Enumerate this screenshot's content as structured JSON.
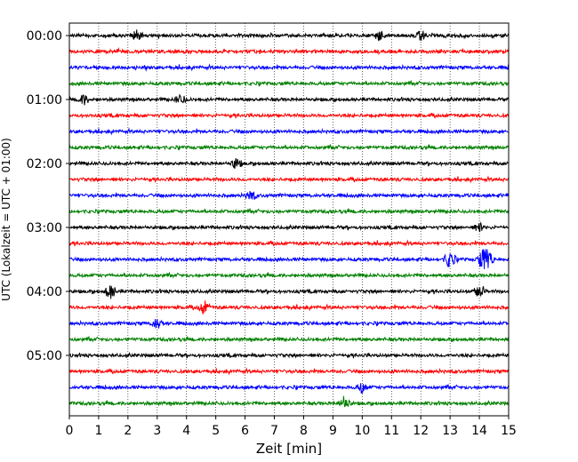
{
  "chart_data": {
    "type": "line",
    "xlabel": "Zeit  [min]",
    "ylabel": "UTC (Lokalzeit = UTC + 01:00)",
    "xlim": [
      0,
      15
    ],
    "x_ticks": [
      0,
      1,
      2,
      3,
      4,
      5,
      6,
      7,
      8,
      9,
      10,
      11,
      12,
      13,
      14,
      15
    ],
    "y_tick_labels": [
      "00:00",
      "01:00",
      "02:00",
      "03:00",
      "04:00",
      "05:00"
    ],
    "y_tick_rows": [
      0,
      4,
      8,
      12,
      16,
      20
    ],
    "trace_minutes": 15,
    "trace_count": 24,
    "trace_colors": [
      "#000000",
      "#ff0000",
      "#0000ff",
      "#008000"
    ],
    "vertical_grid": "dotted",
    "bursts": [
      {
        "trace": 14,
        "minutes": [
          13.0,
          14.1,
          14.3
        ],
        "strength": 2.2
      },
      {
        "trace": 16,
        "minutes": [
          1.4,
          14.0
        ],
        "strength": 1.8
      },
      {
        "trace": 17,
        "minutes": [
          4.6
        ],
        "strength": 1.6
      },
      {
        "trace": 18,
        "minutes": [
          3.0
        ],
        "strength": 1.4
      },
      {
        "trace": 22,
        "minutes": [
          10.0
        ],
        "strength": 1.4
      },
      {
        "trace": 23,
        "minutes": [
          9.4
        ],
        "strength": 1.8
      },
      {
        "trace": 0,
        "minutes": [
          2.3,
          10.6,
          12.0
        ],
        "strength": 1.2
      },
      {
        "trace": 4,
        "minutes": [
          0.5,
          3.8
        ],
        "strength": 1.2
      },
      {
        "trace": 8,
        "minutes": [
          5.7
        ],
        "strength": 1.2
      },
      {
        "trace": 10,
        "minutes": [
          6.2
        ],
        "strength": 1.2
      },
      {
        "trace": 12,
        "minutes": [
          14.0
        ],
        "strength": 1.0
      }
    ]
  }
}
